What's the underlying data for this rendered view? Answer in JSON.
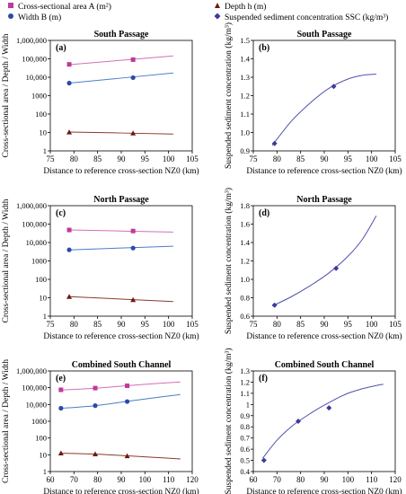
{
  "legend": {
    "items": [
      {
        "label": "Cross-sectional area A (m²)",
        "color": "#c0399b",
        "marker": "square"
      },
      {
        "label": "Width B (m)",
        "color": "#2c4aa8",
        "marker": "circle"
      },
      {
        "label": "Depth h (m)",
        "color": "#6b1a12",
        "marker": "triangle"
      },
      {
        "label": "Suspended sediment concentration SSC (kg/m³)",
        "color": "#3b3b9c",
        "marker": "diamond"
      }
    ]
  },
  "colors": {
    "area": "#c0399b",
    "area_line": "#d36fb8",
    "width": "#2c4aa8",
    "width_line": "#4c7cc8",
    "depth": "#6b1a12",
    "depth_line": "#8a3b2a",
    "ssc": "#3b3b9c",
    "ssc_line": "#5050b0"
  },
  "chart_data": [
    {
      "panel": "(a)",
      "type": "line",
      "title": "South Passage",
      "xlabel": "Distance to reference cross-section NZ0 (km)",
      "ylabel": "Cross-sectional area / Depth / Width",
      "yscale": "log",
      "xlim": [
        75,
        105
      ],
      "ylim": [
        1,
        1000000
      ],
      "xticks": [
        "75",
        "80",
        "85",
        "90",
        "95",
        "100",
        "105"
      ],
      "yticks": [
        "1",
        "10",
        "100",
        "1000",
        "10,000",
        "100,000",
        "1,000,000"
      ],
      "series": [
        {
          "name": "Cross-sectional area A (m²)",
          "points_x": [
            79,
            92.5
          ],
          "points_y": [
            50000,
            90000
          ],
          "curve_x": [
            79,
            101
          ],
          "curve_y": [
            48000,
            145000
          ]
        },
        {
          "name": "Width B (m)",
          "points_x": [
            79,
            92.5
          ],
          "points_y": [
            4800,
            9500
          ],
          "curve_x": [
            79,
            101
          ],
          "curve_y": [
            4800,
            17000
          ]
        },
        {
          "name": "Depth h (m)",
          "points_x": [
            79,
            92.5
          ],
          "points_y": [
            10.5,
            9.2
          ],
          "curve_x": [
            79,
            101
          ],
          "curve_y": [
            10.6,
            8.3
          ]
        }
      ]
    },
    {
      "panel": "(b)",
      "type": "line",
      "title": "South Passage",
      "xlabel": "Distance to reference cross-section NZ0 (km)",
      "ylabel": "Suspended sediment concentration (kg/m³)",
      "xlim": [
        75,
        105
      ],
      "ylim": [
        0.9,
        1.5
      ],
      "xticks": [
        "75",
        "80",
        "85",
        "90",
        "95",
        "100",
        "105"
      ],
      "yticks": [
        "0.9",
        "1.0",
        "1.1",
        "1.2",
        "1.3",
        "1.4",
        "1.5"
      ],
      "series": [
        {
          "name": "Suspended sediment concentration SSC (kg/m³)",
          "points_x": [
            79.5,
            92
          ],
          "points_y": [
            0.94,
            1.25
          ],
          "curve_x": [
            79,
            83,
            87,
            91,
            95,
            98,
            101
          ],
          "curve_y": [
            0.93,
            1.06,
            1.16,
            1.24,
            1.29,
            1.31,
            1.317
          ]
        }
      ]
    },
    {
      "panel": "(c)",
      "type": "line",
      "title": "North Passage",
      "xlabel": "Distance to reference cross-section NZ0 (km)",
      "ylabel": "Cross-sectional area / Depth / Width",
      "yscale": "log",
      "xlim": [
        75,
        105
      ],
      "ylim": [
        1,
        1000000
      ],
      "xticks": [
        "75",
        "80",
        "85",
        "90",
        "95",
        "100",
        "105"
      ],
      "yticks": [
        "1",
        "10",
        "100",
        "1000",
        "10,000",
        "100,000",
        "1,000,000"
      ],
      "series": [
        {
          "name": "Cross-sectional area A (m²)",
          "points_x": [
            79,
            92.5
          ],
          "points_y": [
            48000,
            42000
          ],
          "curve_x": [
            79,
            101
          ],
          "curve_y": [
            48000,
            37000
          ]
        },
        {
          "name": "Width B (m)",
          "points_x": [
            79,
            92.5
          ],
          "points_y": [
            4000,
            5000
          ],
          "curve_x": [
            79,
            101
          ],
          "curve_y": [
            4000,
            6300
          ]
        },
        {
          "name": "Depth h (m)",
          "points_x": [
            79,
            92.5
          ],
          "points_y": [
            11.5,
            7.8
          ],
          "curve_x": [
            79,
            101
          ],
          "curve_y": [
            11.5,
            6.2
          ]
        }
      ]
    },
    {
      "panel": "(d)",
      "type": "line",
      "title": "North Passage",
      "xlabel": "Distance to reference cross-section NZ0 (km)",
      "ylabel": "Suspended sediment concentration (kg/m³)",
      "xlim": [
        75,
        105
      ],
      "ylim": [
        0.6,
        1.8
      ],
      "xticks": [
        "75",
        "80",
        "85",
        "90",
        "95",
        "100",
        "105"
      ],
      "yticks": [
        "0.6",
        "0.8",
        "1.0",
        "1.2",
        "1.4",
        "1.6",
        "1.8"
      ],
      "series": [
        {
          "name": "Suspended sediment concentration SSC (kg/m³)",
          "points_x": [
            79.5,
            92.5
          ],
          "points_y": [
            0.72,
            1.12
          ],
          "curve_x": [
            79,
            83,
            87,
            91,
            95,
            98,
            101
          ],
          "curve_y": [
            0.71,
            0.81,
            0.93,
            1.07,
            1.25,
            1.43,
            1.69
          ]
        }
      ]
    },
    {
      "panel": "(e)",
      "type": "line",
      "title": "Combined South Channel",
      "xlabel": "Distance to reference cross-section NZ0 (km)",
      "ylabel": "Cross-sectional area / Depth / Width",
      "yscale": "log",
      "xlim": [
        60,
        120
      ],
      "ylim": [
        1,
        1000000
      ],
      "xticks": [
        "60",
        "70",
        "80",
        "90",
        "100",
        "110",
        "120"
      ],
      "yticks": [
        "1",
        "10",
        "100",
        "1000",
        "10,000",
        "100,000",
        "1,000,000"
      ],
      "series": [
        {
          "name": "Cross-sectional area A (m²)",
          "points_x": [
            64.5,
            79,
            92.5
          ],
          "points_y": [
            75000,
            95000,
            130000
          ],
          "curve_x": [
            64,
            79,
            92,
            104,
            115
          ],
          "curve_y": [
            72000,
            92000,
            130000,
            175000,
            220000
          ]
        },
        {
          "name": "Width B (m)",
          "points_x": [
            64.5,
            79,
            92.5
          ],
          "points_y": [
            6000,
            8500,
            15000
          ],
          "curve_x": [
            64,
            79,
            92,
            104,
            115
          ],
          "curve_y": [
            5800,
            8500,
            15000,
            25000,
            39000
          ]
        },
        {
          "name": "Depth h (m)",
          "points_x": [
            64.5,
            79,
            92.5
          ],
          "points_y": [
            12.5,
            11,
            8.5
          ],
          "curve_x": [
            64,
            79,
            92,
            104,
            115
          ],
          "curve_y": [
            12.5,
            11,
            8.8,
            7,
            5.6
          ]
        }
      ]
    },
    {
      "panel": "(f)",
      "type": "line",
      "title": "Combined South Channel",
      "xlabel": "Distance to reference cross-section NZ0 (km)",
      "ylabel": "Suspended sediment concentration (kg/m³)",
      "xlim": [
        60,
        120
      ],
      "ylim": [
        0.4,
        1.3
      ],
      "xticks": [
        "60",
        "70",
        "80",
        "90",
        "100",
        "110",
        "120"
      ],
      "yticks": [
        "0.4",
        "0.5",
        "0.6",
        "0.7",
        "0.8",
        "0.9",
        "1",
        "1.1",
        "1.2",
        "1.3"
      ],
      "series": [
        {
          "name": "Suspended sediment concentration SSC (kg/m³)",
          "points_x": [
            64.5,
            79,
            92
          ],
          "points_y": [
            0.5,
            0.85,
            0.97
          ],
          "curve_x": [
            64,
            70,
            76,
            82,
            88,
            94,
            100,
            106,
            112,
            115
          ],
          "curve_y": [
            0.52,
            0.68,
            0.8,
            0.89,
            0.97,
            1.04,
            1.1,
            1.14,
            1.17,
            1.18
          ]
        }
      ]
    }
  ]
}
